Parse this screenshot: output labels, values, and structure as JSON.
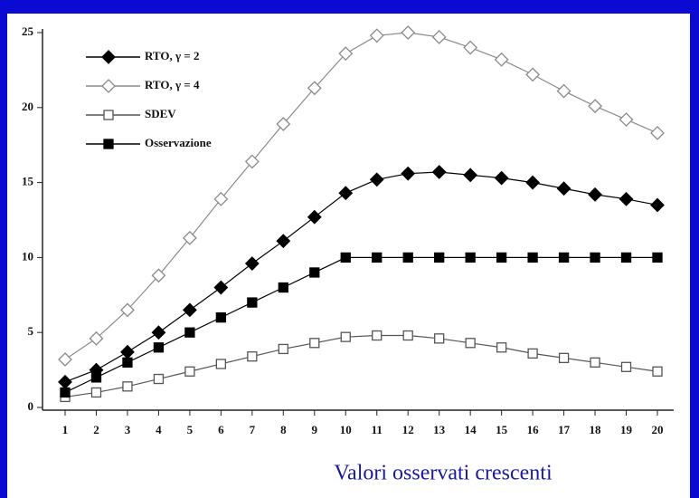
{
  "chart_data": {
    "type": "line",
    "caption": "Valori osservati crescenti",
    "categories": [
      "1",
      "2",
      "3",
      "4",
      "5",
      "6",
      "7",
      "8",
      "9",
      "10",
      "11",
      "12",
      "13",
      "14",
      "15",
      "16",
      "17",
      "18",
      "19",
      "20"
    ],
    "series": [
      {
        "name": "RTO, γ = 2",
        "color": "#000000",
        "marker": "diamond",
        "filled": true,
        "values": [
          1.7,
          2.5,
          3.7,
          5.0,
          6.5,
          8.0,
          9.6,
          11.1,
          12.7,
          14.3,
          15.2,
          15.6,
          15.7,
          15.5,
          15.3,
          15.0,
          14.6,
          14.2,
          13.9,
          13.5
        ]
      },
      {
        "name": "RTO, γ = 4",
        "color": "#8a8a8a",
        "marker": "diamond",
        "filled": false,
        "values": [
          3.2,
          4.6,
          6.5,
          8.8,
          11.3,
          13.9,
          16.4,
          18.9,
          21.3,
          23.6,
          24.8,
          25.0,
          24.7,
          24.0,
          23.2,
          22.2,
          21.1,
          20.1,
          19.2,
          18.3
        ]
      },
      {
        "name": "SDEV",
        "color": "#555555",
        "marker": "square",
        "filled": false,
        "values": [
          0.7,
          1.0,
          1.4,
          1.9,
          2.4,
          2.9,
          3.4,
          3.9,
          4.3,
          4.7,
          4.8,
          4.8,
          4.6,
          4.3,
          4.0,
          3.6,
          3.3,
          3.0,
          2.7,
          2.4
        ]
      },
      {
        "name": "Osservazione",
        "color": "#000000",
        "marker": "square",
        "filled": true,
        "values": [
          1,
          2,
          3,
          4,
          5,
          6,
          7,
          8,
          9,
          10,
          10,
          10,
          10,
          10,
          10,
          10,
          10,
          10,
          10,
          10
        ]
      }
    ],
    "ylim": [
      0,
      25
    ],
    "yticks": [
      0,
      5,
      10,
      15,
      20,
      25
    ],
    "grid": false,
    "legend": "upper left"
  }
}
